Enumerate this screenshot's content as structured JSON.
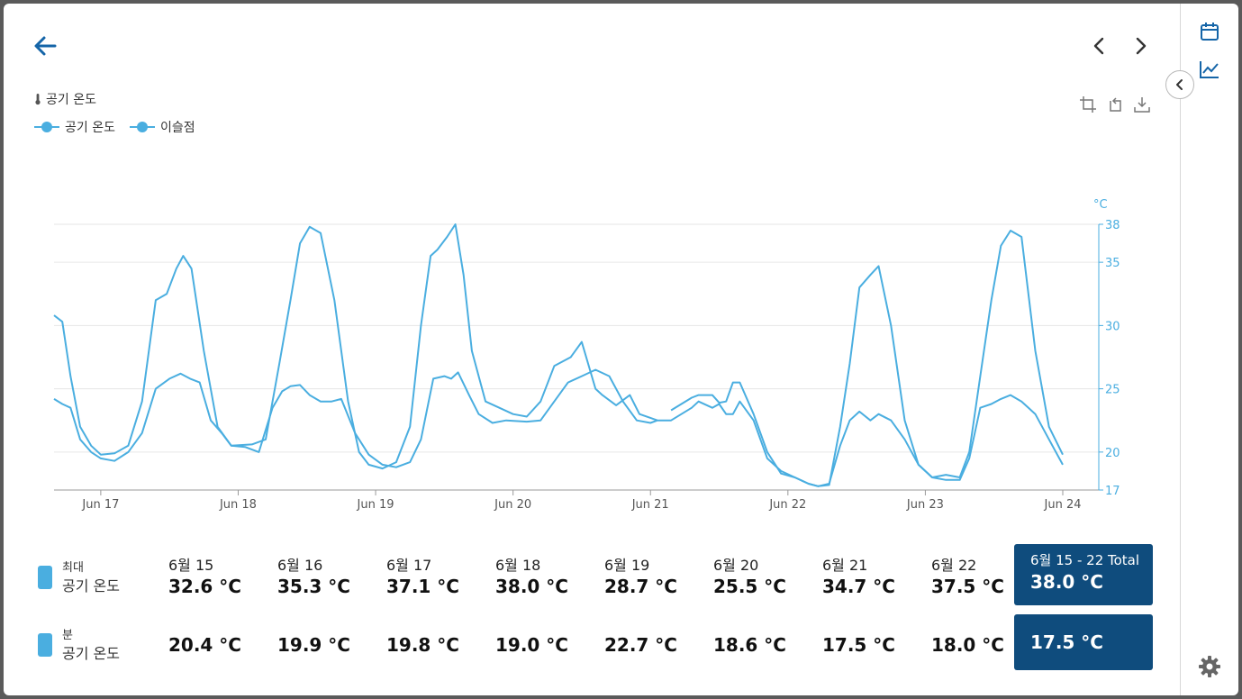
{
  "header": {
    "back_icon": "arrow-left-icon",
    "prev_icon": "chevron-left-icon",
    "next_icon": "chevron-right-icon"
  },
  "sidebar": {
    "calendar_icon": "calendar-icon",
    "chart_icon": "line-chart-icon",
    "collapse_icon": "chevron-left-icon",
    "settings_icon": "gear-icon"
  },
  "toolbar": {
    "icons": [
      "crop-icon",
      "reset-zoom-icon",
      "download-icon"
    ]
  },
  "chart_data": {
    "type": "line",
    "title": "공기 온도",
    "title_icon": "thermometer-icon",
    "y_unit": "°C",
    "ylim": [
      17,
      38
    ],
    "yticks": [
      17,
      20,
      25,
      30,
      35,
      38
    ],
    "xlim": [
      16.66,
      24.0
    ],
    "xticks": [
      {
        "x": 17,
        "label": "Jun 17"
      },
      {
        "x": 18,
        "label": "Jun 18"
      },
      {
        "x": 19,
        "label": "Jun 19"
      },
      {
        "x": 20,
        "label": "Jun 20"
      },
      {
        "x": 21,
        "label": "Jun 21"
      },
      {
        "x": 22,
        "label": "Jun 22"
      },
      {
        "x": 23,
        "label": "Jun 23"
      },
      {
        "x": 24,
        "label": "Jun 24"
      }
    ],
    "grid": true,
    "legend_position": "top-left",
    "series": [
      {
        "name": "공기 온도",
        "color": "#4aaee0",
        "x": [
          16.66,
          16.72,
          16.78,
          16.85,
          16.93,
          17.0,
          17.1,
          17.2,
          17.3,
          17.4,
          17.48,
          17.55,
          17.6,
          17.66,
          17.75,
          17.85,
          17.95,
          18.1,
          18.2,
          18.3,
          18.38,
          18.45,
          18.52,
          18.6,
          18.7,
          18.8,
          18.88,
          18.95,
          19.05,
          19.15,
          19.25,
          19.33,
          19.4,
          19.45,
          19.52,
          19.58,
          19.64,
          19.7,
          19.8,
          19.9,
          20.0,
          20.1,
          20.2,
          20.3,
          20.42,
          20.5,
          20.6,
          20.65,
          20.75,
          20.85,
          20.92,
          21.0,
          21.05,
          21.1,
          21.15,
          21.3,
          21.35,
          21.45,
          21.5,
          21.55,
          21.6,
          21.65,
          21.75,
          21.85,
          21.95,
          22.05,
          22.15,
          22.22,
          22.3,
          22.38,
          22.45,
          22.52,
          22.6,
          22.66,
          22.75,
          22.85,
          22.95,
          23.05,
          23.15,
          23.25,
          23.32,
          23.4,
          23.48,
          23.55,
          23.62,
          23.7,
          23.8,
          23.9,
          24.0
        ],
        "y": [
          30.8,
          30.3,
          26.0,
          22.0,
          20.5,
          19.8,
          19.9,
          20.5,
          24.0,
          32.0,
          32.5,
          34.5,
          35.5,
          34.5,
          28.0,
          22.0,
          20.5,
          20.6,
          21.0,
          27.0,
          32.0,
          36.5,
          37.8,
          37.3,
          32.0,
          24.0,
          20.0,
          19.0,
          18.7,
          19.2,
          22.0,
          30.0,
          35.5,
          36.0,
          37.0,
          38.0,
          34.0,
          28.0,
          24.0,
          23.5,
          23.0,
          22.8,
          24.0,
          26.8,
          27.5,
          28.7,
          25.0,
          24.5,
          23.7,
          24.5,
          23.0,
          22.7,
          22.5,
          null,
          23.3,
          24.3,
          24.5,
          24.5,
          23.9,
          24.0,
          25.5,
          25.5,
          23.0,
          20.0,
          18.3,
          18.0,
          17.5,
          17.3,
          17.4,
          22.0,
          27.0,
          33.0,
          34.0,
          34.7,
          30.0,
          22.5,
          19.0,
          18.0,
          18.2,
          18.0,
          20.0,
          26.0,
          32.0,
          36.3,
          37.5,
          37.0,
          28.0,
          22.0,
          19.8
        ]
      },
      {
        "name": "이슬점",
        "color": "#4aaee0",
        "x": [
          16.66,
          16.72,
          16.78,
          16.85,
          16.93,
          17.0,
          17.1,
          17.2,
          17.3,
          17.4,
          17.5,
          17.58,
          17.65,
          17.72,
          17.8,
          17.88,
          17.95,
          18.05,
          18.15,
          18.25,
          18.32,
          18.38,
          18.45,
          18.52,
          18.6,
          18.68,
          18.75,
          18.85,
          18.95,
          19.05,
          19.15,
          19.25,
          19.33,
          19.42,
          19.5,
          19.55,
          19.6,
          19.68,
          19.75,
          19.85,
          19.95,
          20.1,
          20.2,
          20.3,
          20.4,
          20.5,
          20.6,
          20.7,
          20.8,
          20.9,
          21.0,
          21.05,
          21.1,
          21.15,
          21.3,
          21.35,
          21.45,
          21.5,
          21.55,
          21.6,
          21.65,
          21.75,
          21.85,
          21.95,
          22.05,
          22.15,
          22.22,
          22.3,
          22.38,
          22.45,
          22.52,
          22.6,
          22.66,
          22.75,
          22.85,
          22.95,
          23.05,
          23.15,
          23.25,
          23.32,
          23.4,
          23.48,
          23.55,
          23.62,
          23.7,
          23.8,
          23.9,
          24.0
        ],
        "y": [
          24.2,
          23.8,
          23.5,
          21.0,
          20.0,
          19.5,
          19.3,
          20.0,
          21.5,
          25.0,
          25.8,
          26.2,
          25.8,
          25.5,
          22.5,
          21.5,
          20.5,
          20.4,
          20.0,
          23.5,
          24.8,
          25.2,
          25.3,
          24.5,
          24.0,
          24.0,
          24.2,
          21.5,
          19.8,
          19.0,
          18.8,
          19.2,
          21.0,
          25.8,
          26.0,
          25.8,
          26.3,
          24.5,
          23.0,
          22.3,
          22.5,
          22.4,
          22.5,
          24.0,
          25.5,
          26.0,
          26.5,
          26.0,
          24.0,
          22.5,
          22.3,
          22.5,
          22.5,
          22.5,
          23.5,
          24.0,
          23.5,
          23.8,
          23.0,
          23.0,
          24.0,
          22.5,
          19.5,
          18.5,
          18.0,
          17.5,
          17.3,
          17.5,
          20.5,
          22.5,
          23.2,
          22.5,
          23.0,
          22.5,
          21.0,
          19.0,
          18.0,
          17.8,
          17.8,
          19.5,
          23.5,
          23.8,
          24.2,
          24.5,
          24.0,
          23.0,
          21.0,
          19.0
        ]
      }
    ]
  },
  "stats": {
    "max": {
      "label_small": "최대",
      "label_big": "공기 온도",
      "days": [
        {
          "date": "6월 15",
          "value": "32.6 °C"
        },
        {
          "date": "6월 16",
          "value": "35.3 °C"
        },
        {
          "date": "6월 17",
          "value": "37.1 °C"
        },
        {
          "date": "6월 18",
          "value": "38.0 °C"
        },
        {
          "date": "6월 19",
          "value": "28.7 °C"
        },
        {
          "date": "6월 20",
          "value": "25.5 °C"
        },
        {
          "date": "6월 21",
          "value": "34.7 °C"
        },
        {
          "date": "6월 22",
          "value": "37.5 °C"
        }
      ],
      "total_label": "6월 15 - 22 Total",
      "total_value": "38.0 °C"
    },
    "min": {
      "label_small": "분",
      "label_big": "공기 온도",
      "values": [
        "20.4 °C",
        "19.9 °C",
        "19.8 °C",
        "19.0 °C",
        "22.7 °C",
        "18.6 °C",
        "17.5 °C",
        "18.0 °C"
      ],
      "total_value": "17.5 °C"
    }
  }
}
